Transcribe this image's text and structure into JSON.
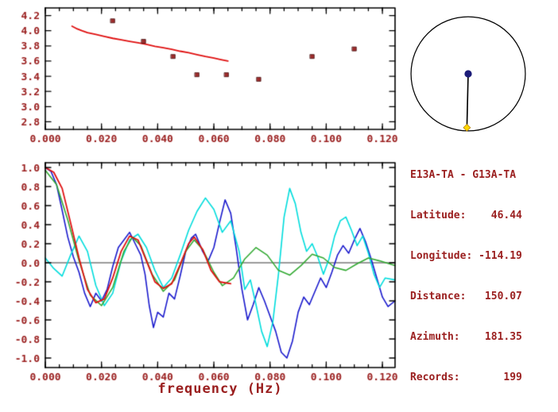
{
  "colors": {
    "text": "#9b2020",
    "frame": "#000000",
    "background": "#ffffff"
  },
  "station_pair_info": {
    "lines": [
      "E13A-TA - G13A-TA",
      "Latitude:    46.44",
      "Longitude: -114.19",
      "Distance:   150.07",
      "Azimuth:    181.35",
      "Records:       199"
    ]
  },
  "particle_circle": {
    "azimuth_deg": 181.35,
    "station_dot_color": "#1c1c78",
    "endpoint_marker_color": "#ffd700",
    "stroke": "#000000"
  },
  "chart_data": [
    {
      "id": "dispersion-panel",
      "type": "line",
      "title": "",
      "xlabel": "",
      "ylabel": "",
      "grid": false,
      "xlim": [
        0,
        0.1245
      ],
      "ylim": [
        2.7,
        4.3
      ],
      "xticks": [
        0,
        0.02,
        0.04,
        0.06,
        0.08,
        0.1,
        0.12
      ],
      "xtick_labels": [
        "0.000",
        "0.020",
        "0.040",
        "0.060",
        "0.080",
        "0.100",
        "0.120"
      ],
      "xminor_step": 0.005,
      "yticks": [
        2.8,
        3.0,
        3.2,
        3.4,
        3.6,
        3.8,
        4.0,
        4.2
      ],
      "ytick_labels": [
        "2.8",
        "3.0",
        "3.2",
        "3.4",
        "3.6",
        "3.8",
        "4.0",
        "4.2"
      ],
      "series": [
        {
          "name": "reference-dispersion-curve",
          "type": "line",
          "color": "#e01010",
          "width": 1.8,
          "points": [
            [
              0.0095,
              4.06
            ],
            [
              0.011,
              4.03
            ],
            [
              0.013,
              4.0
            ],
            [
              0.015,
              3.975
            ],
            [
              0.018,
              3.95
            ],
            [
              0.021,
              3.925
            ],
            [
              0.024,
              3.9
            ],
            [
              0.027,
              3.88
            ],
            [
              0.03,
              3.86
            ],
            [
              0.033,
              3.84
            ],
            [
              0.036,
              3.82
            ],
            [
              0.039,
              3.795
            ],
            [
              0.042,
              3.775
            ],
            [
              0.045,
              3.755
            ],
            [
              0.048,
              3.73
            ],
            [
              0.051,
              3.71
            ],
            [
              0.054,
              3.685
            ],
            [
              0.057,
              3.66
            ],
            [
              0.06,
              3.64
            ],
            [
              0.0625,
              3.62
            ],
            [
              0.065,
              3.6
            ]
          ]
        },
        {
          "name": "measured-phase-velocities",
          "type": "scatter",
          "marker": "square",
          "color": "#a02c2c",
          "size": 5,
          "points": [
            [
              0.024,
              4.13
            ],
            [
              0.035,
              3.86
            ],
            [
              0.0455,
              3.66
            ],
            [
              0.054,
              3.42
            ],
            [
              0.0645,
              3.42
            ],
            [
              0.076,
              3.36
            ],
            [
              0.095,
              3.66
            ],
            [
              0.11,
              3.76
            ]
          ]
        }
      ]
    },
    {
      "id": "waveform-panel",
      "type": "line",
      "title": "",
      "xlabel": "frequency (Hz)",
      "ylabel": "",
      "grid": false,
      "zero_line": true,
      "xlim": [
        0,
        0.1245
      ],
      "ylim": [
        -1.1,
        1.05
      ],
      "xticks": [
        0,
        0.02,
        0.04,
        0.06,
        0.08,
        0.1,
        0.12
      ],
      "xtick_labels": [
        "0.000",
        "0.020",
        "0.040",
        "0.060",
        "0.080",
        "0.100",
        "0.120"
      ],
      "xminor_step": 0.005,
      "yticks": [
        1.0,
        0.8,
        0.6,
        0.4,
        0.2,
        0.0,
        -0.2,
        -0.4,
        -0.6,
        -0.8,
        -1.0
      ],
      "ytick_labels": [
        "1.0",
        "0.8",
        "0.6",
        "0.4",
        "0.2",
        "0.0",
        "-0.2",
        "-0.4",
        "-0.6",
        "-0.8",
        "-1.0"
      ],
      "series": [
        {
          "name": "observed-spectrum-blue",
          "type": "line",
          "color": "#1a1acd",
          "width": 1.6,
          "points": [
            [
              0.0,
              1.0
            ],
            [
              0.002,
              0.96
            ],
            [
              0.004,
              0.82
            ],
            [
              0.006,
              0.55
            ],
            [
              0.008,
              0.27
            ],
            [
              0.01,
              0.06
            ],
            [
              0.012,
              -0.1
            ],
            [
              0.014,
              -0.32
            ],
            [
              0.016,
              -0.46
            ],
            [
              0.018,
              -0.32
            ],
            [
              0.02,
              -0.4
            ],
            [
              0.022,
              -0.28
            ],
            [
              0.024,
              -0.04
            ],
            [
              0.026,
              0.16
            ],
            [
              0.028,
              0.24
            ],
            [
              0.03,
              0.32
            ],
            [
              0.032,
              0.2
            ],
            [
              0.034,
              0.08
            ],
            [
              0.0355,
              -0.12
            ],
            [
              0.037,
              -0.45
            ],
            [
              0.0385,
              -0.68
            ],
            [
              0.04,
              -0.52
            ],
            [
              0.042,
              -0.57
            ],
            [
              0.044,
              -0.32
            ],
            [
              0.046,
              -0.38
            ],
            [
              0.048,
              -0.14
            ],
            [
              0.05,
              0.12
            ],
            [
              0.052,
              0.26
            ],
            [
              0.0535,
              0.3
            ],
            [
              0.056,
              0.12
            ],
            [
              0.058,
              0.02
            ],
            [
              0.06,
              0.16
            ],
            [
              0.062,
              0.42
            ],
            [
              0.064,
              0.66
            ],
            [
              0.066,
              0.52
            ],
            [
              0.068,
              0.14
            ],
            [
              0.07,
              -0.28
            ],
            [
              0.072,
              -0.6
            ],
            [
              0.074,
              -0.44
            ],
            [
              0.076,
              -0.26
            ],
            [
              0.078,
              -0.4
            ],
            [
              0.08,
              -0.56
            ],
            [
              0.082,
              -0.72
            ],
            [
              0.084,
              -0.94
            ],
            [
              0.086,
              -1.0
            ],
            [
              0.088,
              -0.82
            ],
            [
              0.09,
              -0.52
            ],
            [
              0.092,
              -0.36
            ],
            [
              0.094,
              -0.44
            ],
            [
              0.096,
              -0.3
            ],
            [
              0.098,
              -0.16
            ],
            [
              0.1,
              -0.26
            ],
            [
              0.102,
              -0.1
            ],
            [
              0.104,
              0.08
            ],
            [
              0.106,
              0.18
            ],
            [
              0.108,
              0.1
            ],
            [
              0.11,
              0.24
            ],
            [
              0.112,
              0.36
            ],
            [
              0.114,
              0.22
            ],
            [
              0.116,
              0.04
            ],
            [
              0.118,
              -0.16
            ],
            [
              0.12,
              -0.36
            ],
            [
              0.122,
              -0.46
            ],
            [
              0.1245,
              -0.4
            ]
          ]
        },
        {
          "name": "observed-spectrum-cyan",
          "type": "line",
          "color": "#00dddd",
          "width": 1.6,
          "points": [
            [
              0.0,
              0.05
            ],
            [
              0.003,
              -0.06
            ],
            [
              0.006,
              -0.14
            ],
            [
              0.009,
              0.08
            ],
            [
              0.012,
              0.28
            ],
            [
              0.015,
              0.12
            ],
            [
              0.018,
              -0.24
            ],
            [
              0.021,
              -0.45
            ],
            [
              0.024,
              -0.32
            ],
            [
              0.027,
              0.02
            ],
            [
              0.03,
              0.24
            ],
            [
              0.033,
              0.3
            ],
            [
              0.036,
              0.16
            ],
            [
              0.039,
              -0.08
            ],
            [
              0.042,
              -0.26
            ],
            [
              0.045,
              -0.16
            ],
            [
              0.048,
              0.08
            ],
            [
              0.051,
              0.34
            ],
            [
              0.054,
              0.54
            ],
            [
              0.057,
              0.68
            ],
            [
              0.06,
              0.56
            ],
            [
              0.063,
              0.32
            ],
            [
              0.066,
              0.44
            ],
            [
              0.069,
              0.12
            ],
            [
              0.071,
              -0.28
            ],
            [
              0.073,
              -0.18
            ],
            [
              0.075,
              -0.44
            ],
            [
              0.077,
              -0.72
            ],
            [
              0.079,
              -0.88
            ],
            [
              0.081,
              -0.62
            ],
            [
              0.083,
              -0.12
            ],
            [
              0.085,
              0.48
            ],
            [
              0.087,
              0.78
            ],
            [
              0.089,
              0.62
            ],
            [
              0.091,
              0.32
            ],
            [
              0.093,
              0.12
            ],
            [
              0.095,
              0.2
            ],
            [
              0.097,
              0.06
            ],
            [
              0.099,
              -0.12
            ],
            [
              0.101,
              0.04
            ],
            [
              0.103,
              0.28
            ],
            [
              0.105,
              0.44
            ],
            [
              0.107,
              0.48
            ],
            [
              0.109,
              0.34
            ],
            [
              0.111,
              0.18
            ],
            [
              0.113,
              0.28
            ],
            [
              0.115,
              0.1
            ],
            [
              0.117,
              -0.12
            ],
            [
              0.119,
              -0.26
            ],
            [
              0.121,
              -0.16
            ],
            [
              0.1245,
              -0.18
            ]
          ]
        },
        {
          "name": "model-fit-green",
          "type": "line",
          "color": "#33aa33",
          "width": 1.6,
          "points": [
            [
              0.0,
              0.97
            ],
            [
              0.004,
              0.82
            ],
            [
              0.008,
              0.45
            ],
            [
              0.012,
              0.02
            ],
            [
              0.016,
              -0.34
            ],
            [
              0.02,
              -0.45
            ],
            [
              0.024,
              -0.26
            ],
            [
              0.028,
              0.12
            ],
            [
              0.031,
              0.27
            ],
            [
              0.034,
              0.18
            ],
            [
              0.038,
              -0.12
            ],
            [
              0.042,
              -0.3
            ],
            [
              0.046,
              -0.18
            ],
            [
              0.05,
              0.12
            ],
            [
              0.053,
              0.24
            ],
            [
              0.056,
              0.14
            ],
            [
              0.06,
              -0.1
            ],
            [
              0.063,
              -0.24
            ],
            [
              0.067,
              -0.16
            ],
            [
              0.071,
              0.04
            ],
            [
              0.075,
              0.16
            ],
            [
              0.079,
              0.08
            ],
            [
              0.083,
              -0.08
            ],
            [
              0.087,
              -0.13
            ],
            [
              0.091,
              -0.03
            ],
            [
              0.095,
              0.09
            ],
            [
              0.099,
              0.05
            ],
            [
              0.103,
              -0.05
            ],
            [
              0.107,
              -0.08
            ],
            [
              0.111,
              -0.01
            ],
            [
              0.115,
              0.05
            ],
            [
              0.119,
              0.02
            ],
            [
              0.1245,
              -0.03
            ]
          ]
        },
        {
          "name": "model-fit-red",
          "type": "line",
          "color": "#e01010",
          "width": 1.8,
          "points": [
            [
              0.0,
              1.0
            ],
            [
              0.003,
              0.95
            ],
            [
              0.006,
              0.78
            ],
            [
              0.009,
              0.42
            ],
            [
              0.012,
              0.05
            ],
            [
              0.015,
              -0.28
            ],
            [
              0.018,
              -0.42
            ],
            [
              0.021,
              -0.38
            ],
            [
              0.024,
              -0.16
            ],
            [
              0.027,
              0.12
            ],
            [
              0.03,
              0.28
            ],
            [
              0.033,
              0.24
            ],
            [
              0.036,
              0.02
            ],
            [
              0.039,
              -0.2
            ],
            [
              0.042,
              -0.27
            ],
            [
              0.045,
              -0.22
            ],
            [
              0.048,
              -0.02
            ],
            [
              0.051,
              0.2
            ],
            [
              0.053,
              0.27
            ],
            [
              0.056,
              0.14
            ],
            [
              0.059,
              -0.08
            ],
            [
              0.062,
              -0.2
            ],
            [
              0.066,
              -0.22
            ]
          ]
        }
      ]
    }
  ]
}
